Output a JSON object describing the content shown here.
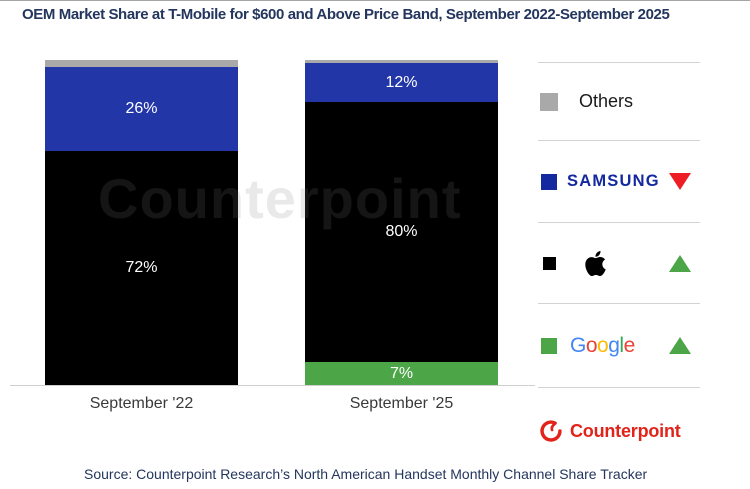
{
  "title": "OEM Market Share at T-Mobile for $600 and Above Price Band, September 2022-September 2025",
  "watermark": "Counterpoint",
  "source": "Source: Counterpoint Research’s North American Handset Monthly Channel Share Tracker",
  "chart_data": {
    "type": "bar",
    "stacked": true,
    "unit": "%",
    "title": "OEM Market Share at T-Mobile for $600 and Above Price Band, September 2022-September 2025",
    "categories": [
      "September '22",
      "September '25"
    ],
    "series": [
      {
        "name": "Others",
        "color": "#a9a9a9",
        "values": [
          2,
          1
        ],
        "labels": [
          "",
          ""
        ]
      },
      {
        "name": "Samsung",
        "color": "#2236a8",
        "values": [
          26,
          12
        ],
        "labels": [
          "26%",
          "12%"
        ]
      },
      {
        "name": "Apple",
        "color": "#000000",
        "values": [
          72,
          80
        ],
        "labels": [
          "72%",
          "80%"
        ]
      },
      {
        "name": "Google",
        "color": "#4ca546",
        "values": [
          0,
          7
        ],
        "labels": [
          "",
          "7%"
        ]
      }
    ],
    "ylim": [
      0,
      100
    ],
    "grid": false,
    "legend_position": "right"
  },
  "legend": {
    "items": [
      {
        "label": "Others",
        "swatch": "#a9a9a9",
        "trend": null
      },
      {
        "label": "SAMSUNG",
        "swatch": "#1428a0",
        "wordmark_color": "#1428a0",
        "trend": "down",
        "trend_color": "#ee1c25"
      },
      {
        "label": "Apple",
        "swatch": "#000000",
        "trend": "up",
        "trend_color": "#4ca546"
      },
      {
        "label": "Google",
        "swatch": "#4ca546",
        "trend": "up",
        "trend_color": "#4ca546",
        "letters": [
          {
            "ch": "G",
            "color": "#4285f4"
          },
          {
            "ch": "o",
            "color": "#ea4335"
          },
          {
            "ch": "o",
            "color": "#fbbc05"
          },
          {
            "ch": "g",
            "color": "#4285f4"
          },
          {
            "ch": "l",
            "color": "#34a853"
          },
          {
            "ch": "e",
            "color": "#ea4335"
          }
        ]
      }
    ]
  },
  "branding": {
    "name": "Counterpoint",
    "color": "#e2231a"
  },
  "axis": {
    "baseline_color": "#cfcfcf"
  }
}
